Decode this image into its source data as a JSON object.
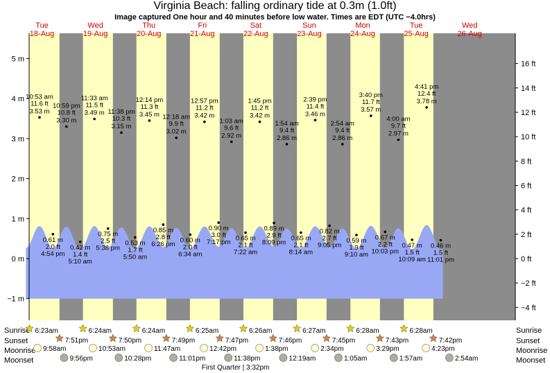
{
  "header": {
    "title": "Virginia Beach: falling  ordinary tide at 0.3m (1.0ft)",
    "subtitle": "Image captured One hour and 40 minutes before low water. Times are EDT (UTC −4.0hrs)"
  },
  "row_labels": {
    "sunrise": "Sunrise",
    "sunset": "Sunset",
    "moonrise": "Moonrise",
    "moonset": "Moonset"
  },
  "moon_phase": "First Quarter | 3:32pm",
  "colors": {
    "night": "#8c8c8c",
    "day": "#ffffc0",
    "tide": "#99a8f5",
    "day_label": "#d00000",
    "sun": "#e6d200",
    "sunset_star": "#d2824b",
    "moonrise": "#ffffcc",
    "moonset": "#aab0a0"
  },
  "chart_data": {
    "type": "area",
    "days": [
      {
        "day": "Tue",
        "date": "18-Aug"
      },
      {
        "day": "Wed",
        "date": "19-Aug"
      },
      {
        "day": "Thu",
        "date": "20-Aug"
      },
      {
        "day": "Fri",
        "date": "21-Aug"
      },
      {
        "day": "Sat",
        "date": "22-Aug"
      },
      {
        "day": "Sun",
        "date": "23-Aug"
      },
      {
        "day": "Mon",
        "date": "24-Aug"
      },
      {
        "day": "Tue",
        "date": "25-Aug"
      },
      {
        "day": "Wed",
        "date": "26-Aug"
      }
    ],
    "y_left": {
      "unit": "m",
      "range": [
        -1.25,
        5.3
      ],
      "ticks": [
        "5 m",
        "4 m",
        "3 m",
        "2 m",
        "1 m",
        "0 m",
        "−1 m"
      ]
    },
    "y_right": {
      "unit": "ft",
      "ticks": [
        "16 ft",
        "14 ft",
        "12 ft",
        "10 ft",
        "8 ft",
        "6 ft",
        "4 ft",
        "2 ft",
        "0 ft",
        "−2 ft",
        "−4 ft"
      ]
    },
    "high_tides": [
      {
        "time": "10:53 am",
        "ft": "11.6 ft",
        "m": "3.53 m",
        "value_m": 3.53
      },
      {
        "time": "10:59 pm",
        "ft": "10.8 ft",
        "m": "3.30 m",
        "value_m": 3.3
      },
      {
        "time": "11:33 am",
        "ft": "11.5 ft",
        "m": "3.49 m",
        "value_m": 3.49
      },
      {
        "time": "11:38 pm",
        "ft": "10.3 ft",
        "m": "3.15 m",
        "value_m": 3.15
      },
      {
        "time": "12:14 pm",
        "ft": "11.3 ft",
        "m": "3.45 m",
        "value_m": 3.45
      },
      {
        "time": "12:18 am",
        "ft": "9.9 ft",
        "m": "3.02 m",
        "value_m": 3.02
      },
      {
        "time": "12:57 pm",
        "ft": "11.2 ft",
        "m": "3.42 m",
        "value_m": 3.42
      },
      {
        "time": "1:03 am",
        "ft": "9.6 ft",
        "m": "2.92 m",
        "value_m": 2.92
      },
      {
        "time": "1:45 pm",
        "ft": "11.2 ft",
        "m": "3.42 m",
        "value_m": 3.42
      },
      {
        "time": "1:54 am",
        "ft": "9.4 ft",
        "m": "2.86 m",
        "value_m": 2.86
      },
      {
        "time": "2:39 pm",
        "ft": "11.4 ft",
        "m": "3.46 m",
        "value_m": 3.46
      },
      {
        "time": "2:54 am",
        "ft": "9.4 ft",
        "m": "2.86 m",
        "value_m": 2.86
      },
      {
        "time": "3:40 pm",
        "ft": "11.7 ft",
        "m": "3.57 m",
        "value_m": 3.57
      },
      {
        "time": "4:00 am",
        "ft": "9.7 ft",
        "m": "2.97 m",
        "value_m": 2.97
      },
      {
        "time": "4:41 pm",
        "ft": "12.4 ft",
        "m": "3.78 m",
        "value_m": 3.78
      }
    ],
    "low_tides": [
      {
        "m": "0.61 m",
        "ft": "2.0 ft",
        "time": "4:54 pm",
        "value_m": 0.61
      },
      {
        "m": "0.42 m",
        "ft": "1.4 ft",
        "time": "5:10 am",
        "value_m": 0.42
      },
      {
        "m": "0.75 m",
        "ft": "2.5 ft",
        "time": "5:38 pm",
        "value_m": 0.75
      },
      {
        "m": "0.53 m",
        "ft": "1.7 ft",
        "time": "5:50 am",
        "value_m": 0.53
      },
      {
        "m": "0.85 m",
        "ft": "2.8 ft",
        "time": "6:26 pm",
        "value_m": 0.85
      },
      {
        "m": "0.60 m",
        "ft": "2.0 ft",
        "time": "6:34 am",
        "value_m": 0.6
      },
      {
        "m": "0.90 m",
        "ft": "3.0 ft",
        "time": "7:17 pm",
        "value_m": 0.9
      },
      {
        "m": "0.65 m",
        "ft": "2.1 ft",
        "time": "7:22 am",
        "value_m": 0.65
      },
      {
        "m": "0.89 m",
        "ft": "2.9 ft",
        "time": "8:09 pm",
        "value_m": 0.89
      },
      {
        "m": "0.65 m",
        "ft": "2.1 ft",
        "time": "8:14 am",
        "value_m": 0.65
      },
      {
        "m": "0.82 m",
        "ft": "2.7 ft",
        "time": "9:05 pm",
        "value_m": 0.82
      },
      {
        "m": "0.59 m",
        "ft": "1.9 ft",
        "time": "9:10 am",
        "value_m": 0.59
      },
      {
        "m": "0.67 m",
        "ft": "2.2 ft",
        "time": "10:03 pm",
        "value_m": 0.67
      },
      {
        "m": "0.47 m",
        "ft": "1.5 ft",
        "time": "10:09 am",
        "value_m": 0.47
      },
      {
        "m": "0.46 m",
        "ft": "1.5 ft",
        "time": "11:01 pm",
        "value_m": 0.46
      }
    ],
    "sunrise": [
      "6:23am",
      "6:24am",
      "6:24am",
      "6:25am",
      "6:26am",
      "6:27am",
      "6:28am",
      "6:28am"
    ],
    "sunset": [
      "7:51pm",
      "7:50pm",
      "7:49pm",
      "7:47pm",
      "7:46pm",
      "7:45pm",
      "7:43pm",
      "7:42pm"
    ],
    "moonrise": [
      "9:58am",
      "10:53am",
      "11:47am",
      "12:42pm",
      "1:38pm",
      "2:34pm",
      "3:29pm",
      "4:23pm"
    ],
    "moonset": [
      "9:56pm",
      "10:28pm",
      "11:01pm",
      "11:38pm",
      "12:19am",
      "1:05am",
      "1:57am",
      "2:54am"
    ]
  }
}
